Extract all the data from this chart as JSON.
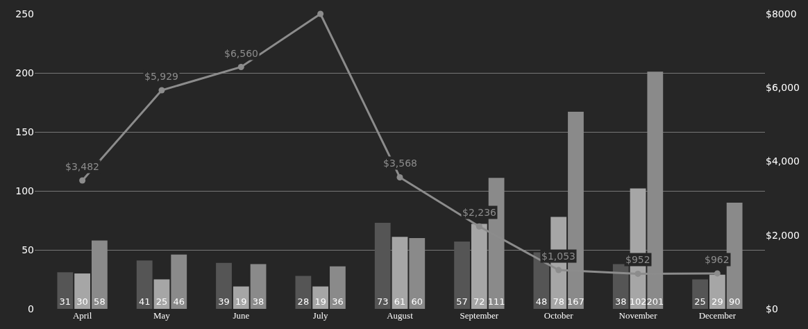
{
  "chart_data": {
    "type": "bar",
    "categories": [
      "April",
      "May",
      "June",
      "July",
      "August",
      "September",
      "October",
      "November",
      "December"
    ],
    "series": [
      {
        "color": "#555555",
        "values": [
          31,
          41,
          39,
          28,
          73,
          57,
          48,
          38,
          25
        ],
        "value_labels": [
          "31",
          "41",
          "39",
          "28",
          "73",
          "57",
          "48",
          "38",
          "25"
        ]
      },
      {
        "color": "#a6a6a6",
        "values": [
          30,
          25,
          19,
          19,
          61,
          72,
          78,
          102,
          29
        ],
        "value_labels": [
          "30",
          "25",
          "19",
          "19",
          "61",
          "72",
          "78",
          "102",
          "29"
        ]
      },
      {
        "color": "#8a8a8a",
        "values": [
          58,
          46,
          38,
          36,
          60,
          111,
          167,
          201,
          90
        ],
        "value_labels": [
          "58",
          "46",
          "38",
          "36",
          "60",
          "111",
          "167",
          "201",
          "90"
        ]
      },
      {
        "type": "line",
        "axis": "y2",
        "color": "#8c8c8c",
        "values": [
          3482,
          5929,
          6560,
          8000,
          3568,
          2236,
          1053,
          952,
          962
        ],
        "value_labels": [
          "$3,482",
          "$5,929",
          "$6,560",
          null,
          "$3,568",
          "$2,236",
          "$1,053",
          "$952",
          "$962"
        ]
      }
    ],
    "ylim": [
      0,
      250
    ],
    "yticks": [
      0,
      50,
      100,
      150,
      200,
      250
    ],
    "y2lim": [
      0,
      8000
    ],
    "y2ticks": [
      {
        "value": 0,
        "label": "$0"
      },
      {
        "value": 2000,
        "label": "$2,000"
      },
      {
        "value": 4000,
        "label": "$4,000"
      },
      {
        "value": 6000,
        "label": "$6,000"
      },
      {
        "value": 8000,
        "label": "$8000"
      }
    ],
    "grid": "y",
    "marker": "circle",
    "line_style": "solid"
  }
}
